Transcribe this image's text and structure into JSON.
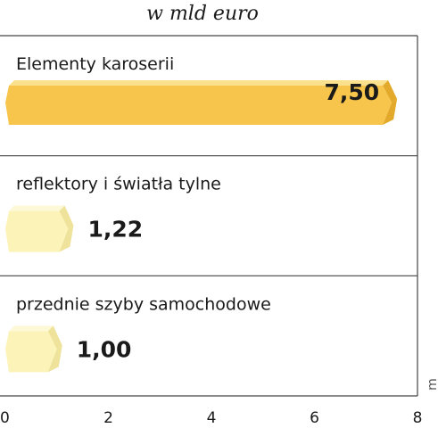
{
  "chart_data": {
    "type": "bar",
    "orientation": "horizontal",
    "subtitle": "w mld euro",
    "categories": [
      "Elementy karoserii",
      "reflektory i światła tylne",
      "przednie szyby samochodowe"
    ],
    "values": [
      7.5,
      1.22,
      1.0
    ],
    "value_labels": [
      "7,50",
      "1,22",
      "1,00"
    ],
    "xlim": [
      0,
      8
    ],
    "x_ticks": [
      "0",
      "2",
      "4",
      "6",
      "8"
    ],
    "grid": "horizontal separators",
    "side_mark": "m"
  },
  "colors": {
    "highlight_bar": "#f7c54c",
    "highlight_bar_top": "#fbe08e",
    "highlight_bar_side": "#e3a92a",
    "bar": "#fbf3b8",
    "bar_top": "#fdf8d6",
    "bar_side": "#efe29a",
    "frame": "#444444"
  }
}
